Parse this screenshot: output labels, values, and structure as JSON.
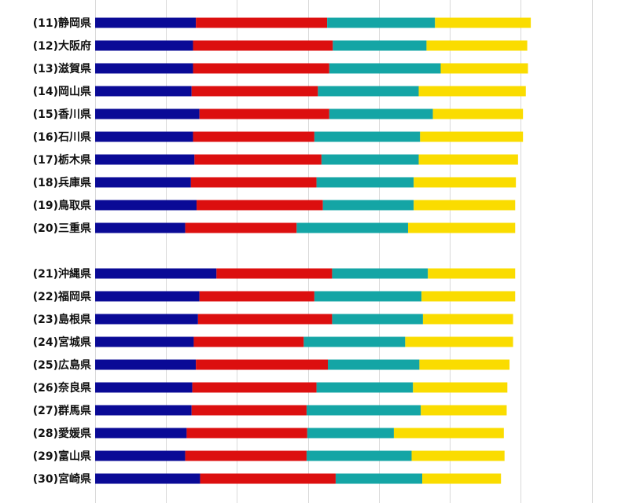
{
  "chart_data": {
    "type": "bar",
    "orientation": "horizontal",
    "stacked": true,
    "grid": true,
    "series_colors": [
      "#0a0a96",
      "#dc0f0f",
      "#14a5a5",
      "#fadc00"
    ],
    "categories": [
      "(11)静岡県",
      "(12)大阪府",
      "(13)滋賀県",
      "(14)岡山県",
      "(15)香川県",
      "(16)石川県",
      "(17)栃木県",
      "(18)兵庫県",
      "(19)鳥取県",
      "(20)三重県",
      "(21)沖縄県",
      "(22)福岡県",
      "(23)島根県",
      "(24)宮城県",
      "(25)広島県",
      "(26)奈良県",
      "(27)群馬県",
      "(28)愛媛県",
      "(29)富山県",
      "(30)宮崎県"
    ],
    "groups": [
      10,
      10
    ],
    "series": [
      {
        "values": [
          1.42,
          1.38,
          1.38,
          1.36,
          1.47,
          1.38,
          1.4,
          1.35,
          1.43,
          1.27,
          1.71,
          1.47,
          1.45,
          1.39,
          1.42,
          1.37,
          1.36,
          1.29,
          1.27,
          1.48
        ]
      },
      {
        "values": [
          1.85,
          1.97,
          1.92,
          1.78,
          1.83,
          1.71,
          1.79,
          1.77,
          1.78,
          1.57,
          1.63,
          1.62,
          1.89,
          1.55,
          1.86,
          1.75,
          1.62,
          1.7,
          1.71,
          1.91
        ]
      },
      {
        "values": [
          1.52,
          1.32,
          1.57,
          1.42,
          1.46,
          1.49,
          1.37,
          1.37,
          1.28,
          1.57,
          1.35,
          1.51,
          1.28,
          1.43,
          1.29,
          1.36,
          1.61,
          1.22,
          1.48,
          1.22
        ]
      },
      {
        "values": [
          1.35,
          1.42,
          1.23,
          1.51,
          1.27,
          1.45,
          1.4,
          1.44,
          1.43,
          1.51,
          1.23,
          1.32,
          1.27,
          1.52,
          1.27,
          1.33,
          1.21,
          1.55,
          1.31,
          1.11
        ]
      }
    ],
    "xlim": [
      0,
      8.2
    ],
    "xticks": [
      0,
      1,
      2,
      3,
      4,
      5,
      6,
      7,
      8
    ]
  }
}
